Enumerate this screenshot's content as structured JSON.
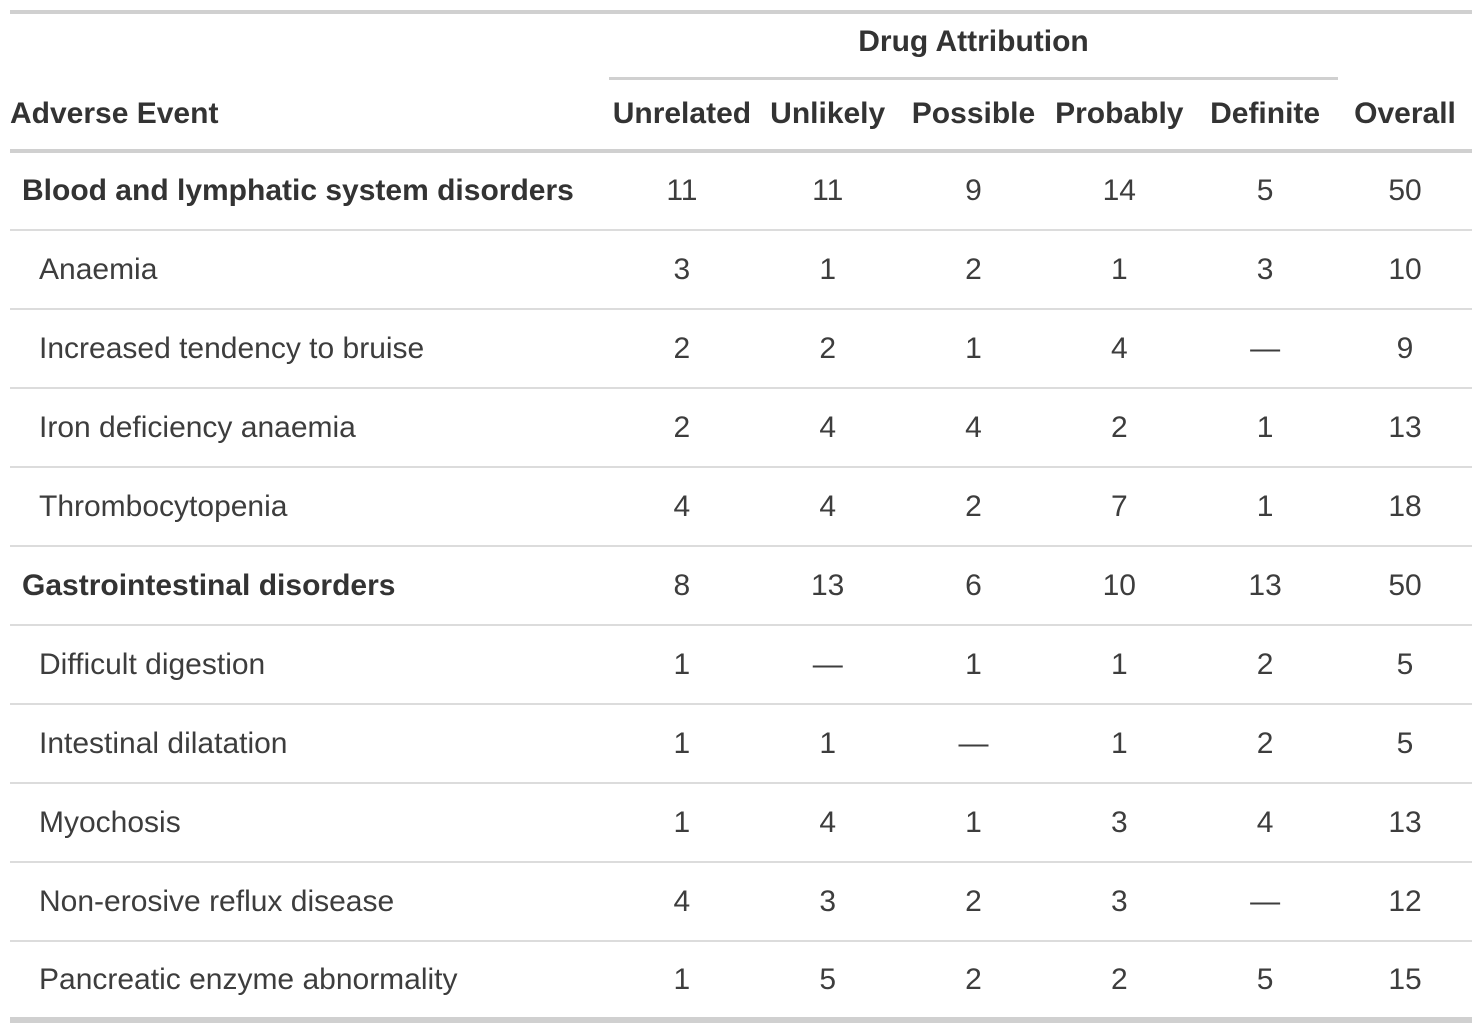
{
  "chart_data": {
    "type": "table",
    "spanner": "Drug Attribution",
    "stub_header": "Adverse Event",
    "columns": [
      "Unrelated",
      "Unlikely",
      "Possible",
      "Probably",
      "Definite",
      "Overall"
    ],
    "rows": [
      {
        "label": "Blood and lymphatic system disorders",
        "is_group": true,
        "values": [
          "11",
          "11",
          "9",
          "14",
          "5",
          "50"
        ]
      },
      {
        "label": "Anaemia",
        "is_group": false,
        "values": [
          "3",
          "1",
          "2",
          "1",
          "3",
          "10"
        ]
      },
      {
        "label": "Increased tendency to bruise",
        "is_group": false,
        "values": [
          "2",
          "2",
          "1",
          "4",
          "—",
          "9"
        ]
      },
      {
        "label": "Iron deficiency anaemia",
        "is_group": false,
        "values": [
          "2",
          "4",
          "4",
          "2",
          "1",
          "13"
        ]
      },
      {
        "label": "Thrombocytopenia",
        "is_group": false,
        "values": [
          "4",
          "4",
          "2",
          "7",
          "1",
          "18"
        ]
      },
      {
        "label": "Gastrointestinal disorders",
        "is_group": true,
        "values": [
          "8",
          "13",
          "6",
          "10",
          "13",
          "50"
        ]
      },
      {
        "label": "Difficult digestion",
        "is_group": false,
        "values": [
          "1",
          "—",
          "1",
          "1",
          "2",
          "5"
        ]
      },
      {
        "label": "Intestinal dilatation",
        "is_group": false,
        "values": [
          "1",
          "1",
          "—",
          "1",
          "2",
          "5"
        ]
      },
      {
        "label": "Myochosis",
        "is_group": false,
        "values": [
          "1",
          "4",
          "1",
          "3",
          "4",
          "13"
        ]
      },
      {
        "label": "Non-erosive reflux disease",
        "is_group": false,
        "values": [
          "4",
          "3",
          "2",
          "3",
          "—",
          "12"
        ]
      },
      {
        "label": "Pancreatic enzyme abnormality",
        "is_group": false,
        "values": [
          "1",
          "5",
          "2",
          "2",
          "5",
          "15"
        ]
      }
    ],
    "missing_marker": "—",
    "layout": {
      "legend_position": "none",
      "grid": "horizontal-row-dividers"
    },
    "colors": {
      "header_text": "#333333",
      "body_text": "#3d3d3d",
      "major_border": "#d0d0d0",
      "row_border": "#dcdcdc",
      "background": "#ffffff"
    }
  }
}
